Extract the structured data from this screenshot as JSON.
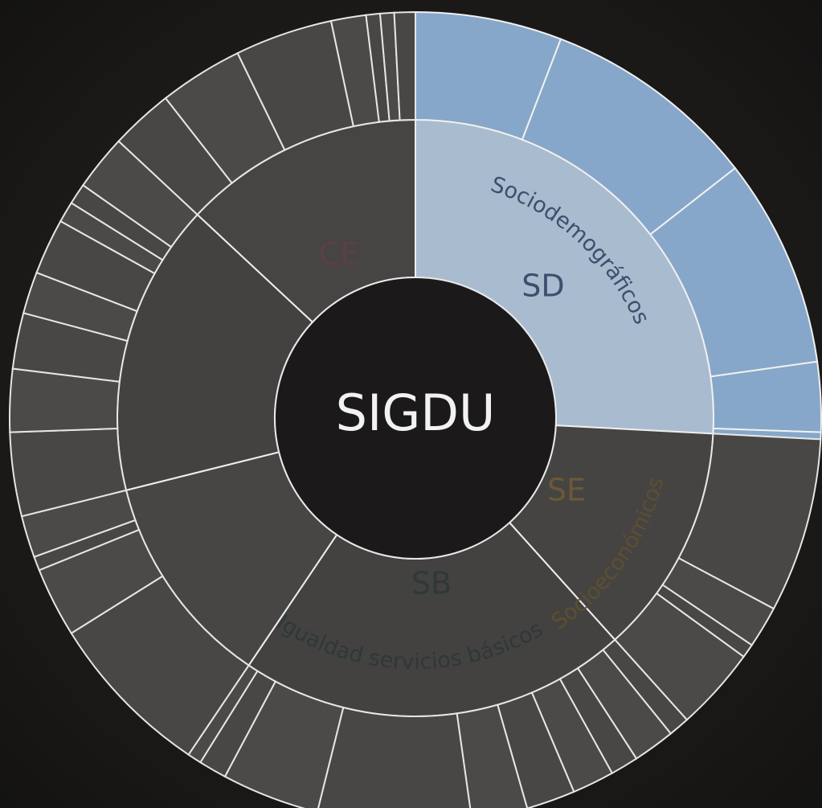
{
  "center": {
    "label": "SIGDU"
  },
  "segments": [
    {
      "code": "SD",
      "name": "Sociodemográficos"
    },
    {
      "code": "SE",
      "name": "Socioeconómicos"
    },
    {
      "code": "SB",
      "name": "Igualdad servicios básicos"
    },
    {
      "code": "CE"
    }
  ]
}
